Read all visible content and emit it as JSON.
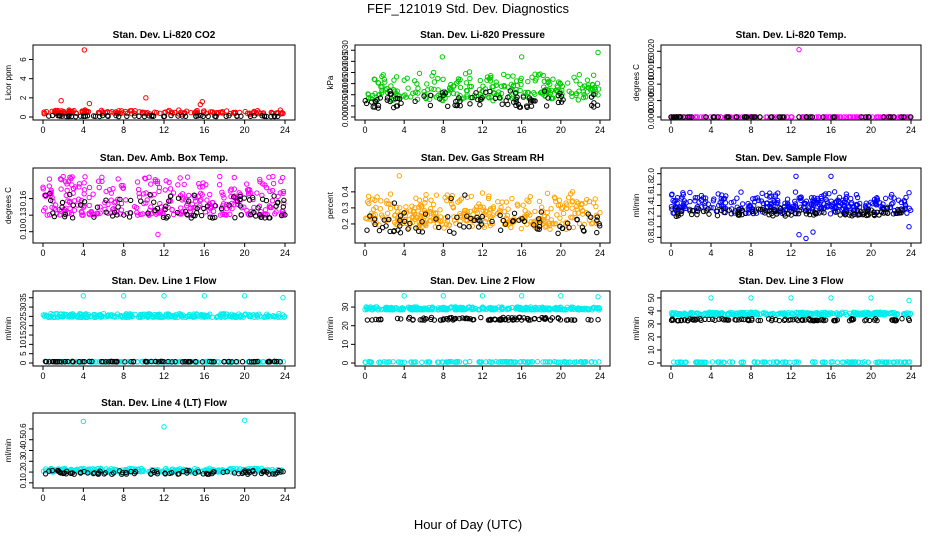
{
  "page_title": "FEF_121019  Std. Dev. Diagnostics",
  "x_axis_title": "Hour of Day (UTC)",
  "chart_data": [
    {
      "type": "scatter",
      "title": "Stan. Dev. Li-820 CO2",
      "ylabel": "Licor ppm",
      "xlim": [
        0,
        24
      ],
      "ylim": [
        0,
        7.2
      ],
      "xticks": [
        "0",
        "4",
        "8",
        "12",
        "16",
        "20",
        "24"
      ],
      "yticks": [
        "0",
        "2",
        "4",
        "6"
      ],
      "ytick_values": [
        0,
        2,
        4,
        6
      ],
      "series": [
        {
          "color": "#ff0000",
          "density": 160,
          "base": [
            0.35,
            0.15
          ],
          "spread": 0.35,
          "outliers": [
            [
              4.1,
              7.0
            ],
            [
              1.8,
              1.7
            ],
            [
              10.2,
              2.0
            ],
            [
              15.8,
              1.6
            ],
            [
              4.6,
              1.4
            ],
            [
              15.6,
              1.3
            ]
          ]
        },
        {
          "color": "#000000",
          "density": 60,
          "base": [
            0.05,
            0.05
          ],
          "spread": 0.1,
          "outliers": []
        }
      ]
    },
    {
      "type": "scatter",
      "title": "Stan. Dev. Li-820 Pressure",
      "ylabel": "kPa",
      "xlim": [
        0,
        24
      ],
      "ylim": [
        0,
        0.031
      ],
      "xticks": [
        "0",
        "4",
        "8",
        "12",
        "16",
        "20",
        "24"
      ],
      "yticks": [
        "0.000",
        "0.005",
        "0.010",
        "0.015",
        "0.020",
        "0.025",
        "0.030"
      ],
      "ytick_values": [
        0,
        0.005,
        0.01,
        0.015,
        0.02,
        0.025,
        0.03
      ],
      "series": [
        {
          "color": "#00cc00",
          "density": 260,
          "base": [
            0.009,
            0.004
          ],
          "spread": 0.01,
          "outliers": [
            [
              7.9,
              0.027
            ],
            [
              16,
              0.027
            ],
            [
              23.8,
              0.029
            ],
            [
              19.2,
              0.017
            ]
          ]
        },
        {
          "color": "#000000",
          "density": 90,
          "base": [
            0.005,
            0.003
          ],
          "spread": 0.006,
          "outliers": []
        }
      ]
    },
    {
      "type": "scatter",
      "title": "Stan. Dev. Li-820 Temp.",
      "ylabel": "degrees C",
      "xlim": [
        0,
        24
      ],
      "ylim": [
        0,
        0.0021
      ],
      "xticks": [
        "0",
        "4",
        "8",
        "12",
        "16",
        "20",
        "24"
      ],
      "yticks": [
        "0.0000",
        "0.0005",
        "0.0010",
        "0.0015",
        "0.0020"
      ],
      "ytick_values": [
        0,
        0.0005,
        0.001,
        0.0015,
        0.002
      ],
      "series": [
        {
          "color": "#ff00ff",
          "density": 140,
          "base": [
            0.0,
            0.0
          ],
          "spread": 0.0,
          "outliers": [
            [
              12.8,
              0.00205
            ],
            [
              0,
              0.0
            ]
          ]
        },
        {
          "color": "#000000",
          "density": 60,
          "base": [
            0.0,
            0.0
          ],
          "spread": 0.0,
          "outliers": []
        }
      ]
    },
    {
      "type": "scatter",
      "title": "Stan. Dev. Amb. Box Temp.",
      "ylabel": "degrees C",
      "xlim": [
        0,
        24
      ],
      "ylim": [
        0.085,
        0.21
      ],
      "xticks": [
        "0",
        "4",
        "8",
        "12",
        "16",
        "20",
        "24"
      ],
      "yticks": [
        "0.10",
        "0.13",
        "0.16"
      ],
      "ytick_values": [
        0.1,
        0.13,
        0.16
      ],
      "series": [
        {
          "color": "#ff00ff",
          "density": 320,
          "base": [
            0.13,
            0.0
          ],
          "spread": 0.07,
          "outliers": [
            [
              2,
              0.2
            ],
            [
              22.8,
              0.2
            ],
            [
              11.4,
              0.095
            ]
          ]
        },
        {
          "color": "#000000",
          "density": 90,
          "base": [
            0.125,
            0.0
          ],
          "spread": 0.045,
          "outliers": []
        }
      ]
    },
    {
      "type": "scatter",
      "title": "Stan. Dev. Gas Stream RH",
      "ylabel": "percent",
      "xlim": [
        0,
        24
      ],
      "ylim": [
        0.1,
        0.53
      ],
      "xticks": [
        "0",
        "4",
        "8",
        "12",
        "16",
        "20",
        "24"
      ],
      "yticks": [
        "0.2",
        "0.3",
        "0.4"
      ],
      "ytick_values": [
        0.2,
        0.3,
        0.4
      ],
      "series": [
        {
          "color": "#ffa500",
          "density": 340,
          "base": [
            0.2,
            0.07
          ],
          "spread": 0.17,
          "outliers": [
            [
              3.5,
              0.5
            ],
            [
              21.2,
              0.4
            ],
            [
              8.4,
              0.38
            ]
          ]
        },
        {
          "color": "#000000",
          "density": 80,
          "base": [
            0.16,
            0.04
          ],
          "spread": 0.1,
          "outliers": [
            [
              10.2,
              0.38
            ],
            [
              8.8,
              0.36
            ],
            [
              3,
              0.33
            ]
          ]
        }
      ]
    },
    {
      "type": "scatter",
      "title": "Stan. Dev. Sample Flow",
      "ylabel": "ml/min",
      "xlim": [
        0,
        24
      ],
      "ylim": [
        0.75,
        2.05
      ],
      "xticks": [
        "0",
        "4",
        "8",
        "12",
        "16",
        "20",
        "24"
      ],
      "yticks": [
        "0.8",
        "1.0",
        "1.2",
        "1.4",
        "1.6",
        "1.8",
        "2.0"
      ],
      "ytick_values": [
        0.8,
        1.0,
        1.2,
        1.4,
        1.6,
        1.8,
        2.0
      ],
      "series": [
        {
          "color": "#0000ff",
          "density": 330,
          "base": [
            1.3,
            0.15
          ],
          "spread": 0.3,
          "outliers": [
            [
              12.5,
              1.95
            ],
            [
              16,
              1.95
            ],
            [
              13.5,
              0.78
            ],
            [
              12.8,
              0.85
            ],
            [
              14.2,
              0.9
            ],
            [
              23.8,
              1.0
            ]
          ]
        },
        {
          "color": "#000000",
          "density": 110,
          "base": [
            1.22,
            0.05
          ],
          "spread": 0.12,
          "outliers": []
        }
      ]
    },
    {
      "type": "scatter",
      "title": "Stan. Dev. Line 1 Flow",
      "ylabel": "ml/min",
      "xlim": [
        0,
        24
      ],
      "ylim": [
        0,
        37
      ],
      "xticks": [
        "0",
        "4",
        "8",
        "12",
        "16",
        "20",
        "24"
      ],
      "yticks": [
        "0",
        "5",
        "10",
        "15",
        "20",
        "25",
        "30",
        "35"
      ],
      "ytick_values": [
        0,
        5,
        10,
        15,
        20,
        25,
        30,
        35
      ],
      "series": [
        {
          "color": "#00eeee",
          "density": 300,
          "base": [
            24.5,
            0.0
          ],
          "spread": 2.0,
          "outliers": [
            [
              4,
              36
            ],
            [
              8,
              36
            ],
            [
              12,
              36
            ],
            [
              16,
              36
            ],
            [
              20,
              36
            ],
            [
              23.8,
              35
            ]
          ]
        },
        {
          "color": "#00eeee",
          "density": 120,
          "base": [
            0.5,
            0.0
          ],
          "spread": 0.4,
          "outliers": []
        },
        {
          "color": "#000000",
          "density": 90,
          "base": [
            0.6,
            0.0
          ],
          "spread": 0.3,
          "outliers": []
        }
      ]
    },
    {
      "type": "scatter",
      "title": "Stan. Dev. Line 2 Flow",
      "ylabel": "ml/min",
      "xlim": [
        0,
        24
      ],
      "ylim": [
        0,
        37
      ],
      "xticks": [
        "0",
        "4",
        "8",
        "12",
        "16",
        "20",
        "24"
      ],
      "yticks": [
        "0",
        "10",
        "20",
        "30"
      ],
      "ytick_values": [
        0,
        10,
        20,
        30
      ],
      "series": [
        {
          "color": "#00eeee",
          "density": 300,
          "base": [
            28.5,
            0.0
          ],
          "spread": 1.6,
          "outliers": [
            [
              4,
              36
            ],
            [
              8,
              36
            ],
            [
              12,
              36
            ],
            [
              16,
              36
            ],
            [
              20,
              36
            ],
            [
              23.8,
              35.5
            ]
          ]
        },
        {
          "color": "#00eeee",
          "density": 120,
          "base": [
            0.4,
            0.0
          ],
          "spread": 0.4,
          "outliers": []
        },
        {
          "color": "#000000",
          "density": 100,
          "base": [
            23,
            0.0
          ],
          "spread": 1.5,
          "outliers": []
        }
      ]
    },
    {
      "type": "scatter",
      "title": "Stan. Dev. Line 3 Flow",
      "ylabel": "ml/min",
      "xlim": [
        0,
        24
      ],
      "ylim": [
        0,
        53
      ],
      "xticks": [
        "0",
        "4",
        "8",
        "12",
        "16",
        "20",
        "24"
      ],
      "yticks": [
        "0",
        "10",
        "20",
        "30",
        "40",
        "50"
      ],
      "ytick_values": [
        0,
        10,
        20,
        30,
        40,
        50
      ],
      "series": [
        {
          "color": "#00eeee",
          "density": 300,
          "base": [
            37,
            0.0
          ],
          "spread": 2.0,
          "outliers": [
            [
              4,
              50
            ],
            [
              8,
              50
            ],
            [
              12,
              50
            ],
            [
              16,
              50
            ],
            [
              20,
              50
            ],
            [
              23.8,
              48
            ]
          ]
        },
        {
          "color": "#00eeee",
          "density": 120,
          "base": [
            0.5,
            0.0
          ],
          "spread": 0.4,
          "outliers": []
        },
        {
          "color": "#000000",
          "density": 100,
          "base": [
            32.5,
            0.0
          ],
          "spread": 1.5,
          "outliers": []
        }
      ]
    },
    {
      "type": "scatter",
      "title": "Stan. Dev. Line 4 (LT) Flow",
      "ylabel": "ml/min",
      "xlim": [
        0,
        24
      ],
      "ylim": [
        0.08,
        0.72
      ],
      "xticks": [
        "0",
        "4",
        "8",
        "12",
        "16",
        "20",
        "24"
      ],
      "yticks": [
        "0.1",
        "0.2",
        "0.3",
        "0.4",
        "0.5",
        "0.6"
      ],
      "ytick_values": [
        0.1,
        0.2,
        0.3,
        0.4,
        0.5,
        0.6
      ],
      "series": [
        {
          "color": "#00eeee",
          "density": 300,
          "base": [
            0.2,
            0.0
          ],
          "spread": 0.035,
          "outliers": [
            [
              4,
              0.67
            ],
            [
              12,
              0.62
            ],
            [
              20,
              0.68
            ]
          ]
        },
        {
          "color": "#000000",
          "density": 90,
          "base": [
            0.18,
            0.0
          ],
          "spread": 0.035,
          "outliers": []
        }
      ]
    }
  ]
}
